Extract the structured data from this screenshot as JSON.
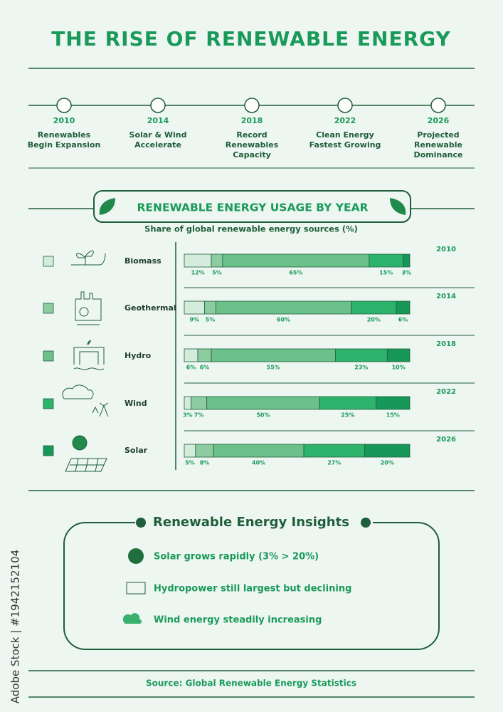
{
  "title": "THE RISE OF RENEWABLE ENERGY",
  "timeline": [
    {
      "year": "2010",
      "label": "Renewables Begin Expansion"
    },
    {
      "year": "2014",
      "label": "Solar & Wind Accelerate"
    },
    {
      "year": "2018",
      "label": "Record Renewables Capacity"
    },
    {
      "year": "2022",
      "label": "Clean Energy Fastest Growing"
    },
    {
      "year": "2026",
      "label": "Projected Renewable Dominance"
    }
  ],
  "chart_data": {
    "type": "bar",
    "orientation": "horizontal",
    "stacked": true,
    "title": "RENEWABLE ENERGY USAGE BY YEAR",
    "subtitle": "Share of global renewable energy sources (%)",
    "categories": [
      "2010",
      "2014",
      "2018",
      "2022",
      "2026"
    ],
    "xlim": [
      0,
      100
    ],
    "series": [
      {
        "name": "Biomass",
        "color": "#d4ecdc",
        "values": [
          12,
          9,
          6,
          3,
          5
        ],
        "value_labels": [
          "12%",
          "9%",
          "6%",
          "3%",
          "5%"
        ]
      },
      {
        "name": "Geothermal",
        "color": "#8ccca0",
        "values": [
          5,
          5,
          6,
          7,
          8
        ],
        "value_labels": [
          "5%",
          "5%",
          "6%",
          "7%",
          "8%"
        ]
      },
      {
        "name": "Hydro",
        "color": "#6cc08a",
        "values": [
          65,
          60,
          55,
          50,
          40
        ],
        "value_labels": [
          "65%",
          "60%",
          "55%",
          "50%",
          "40%"
        ]
      },
      {
        "name": "Wind",
        "color": "#2db36b",
        "values": [
          15,
          20,
          23,
          25,
          27
        ],
        "value_labels": [
          "15%",
          "20%",
          "23%",
          "25%",
          "27%"
        ]
      },
      {
        "name": "Solar",
        "color": "#17985a",
        "values": [
          3,
          6,
          10,
          15,
          20
        ],
        "value_labels": [
          "3%",
          "6%",
          "10%",
          "15%",
          "20%"
        ]
      }
    ]
  },
  "insights": {
    "title": "Renewable Energy Insights",
    "items": [
      "Solar grows rapidly (3% > 20%)",
      "Hydropower still largest but declining",
      "Wind energy steadily increasing"
    ]
  },
  "source": "Source: Global Renewable Energy Statistics",
  "watermark": "Adobe Stock | #1942152104"
}
